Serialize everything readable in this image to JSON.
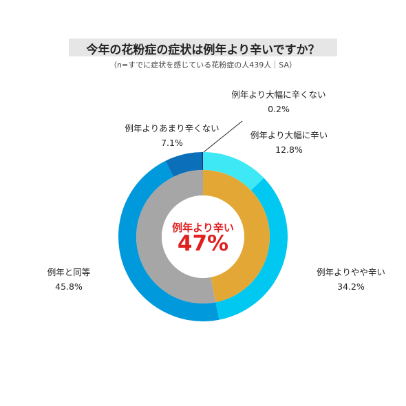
{
  "title": "今年の花粉症の症状は例年より辛いですか？",
  "subtitle": "（n=すでに症状を感じている花粉症の人439人｜SA）",
  "center": {
    "label": "例年より辛い",
    "value": "47%"
  },
  "colors": {
    "outer": [
      "#3fe8f5",
      "#00c8f0",
      "#0099db",
      "#0b6fb9",
      "#1a2e6b"
    ],
    "inner": [
      "#e3a735",
      "#a6a6a6"
    ],
    "center_text": "#e02020",
    "title_bg": "#e6e6e6"
  },
  "chart_data": [
    {
      "type": "pie",
      "ring": "outer",
      "categories": [
        "例年より大幅に辛い",
        "例年よりやや辛い",
        "例年と同等",
        "例年よりあまり辛くない",
        "例年より大幅に辛くない"
      ],
      "values": [
        12.8,
        34.2,
        45.8,
        7.1,
        0.2
      ],
      "value_labels": [
        "12.8%",
        "34.2%",
        "45.8%",
        "7.1%",
        "0.2%"
      ],
      "start": "top",
      "direction": "clockwise"
    },
    {
      "type": "pie",
      "ring": "inner",
      "categories": [
        "例年より辛い",
        ""
      ],
      "values": [
        47,
        53
      ],
      "start": "top",
      "direction": "clockwise"
    }
  ]
}
